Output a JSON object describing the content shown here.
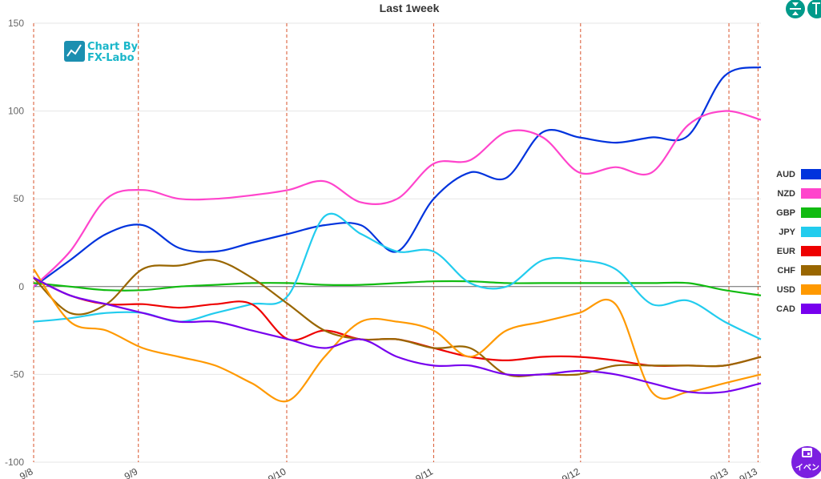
{
  "chart_data": {
    "type": "line",
    "title": "Last 1week",
    "ylim": [
      -100,
      150
    ],
    "yticks": [
      150,
      100,
      50,
      0,
      -50,
      -100
    ],
    "x": [
      0,
      0.25,
      0.5,
      0.75,
      1,
      1.25,
      1.5,
      1.75,
      2,
      2.25,
      2.5,
      2.75,
      3,
      3.25,
      3.5,
      3.75,
      4,
      4.25,
      4.5,
      4.75,
      5
    ],
    "day_ticks": [
      {
        "label": "9/8",
        "x": 0
      },
      {
        "label": "9/9",
        "x": 0.72
      },
      {
        "label": "9/10",
        "x": 1.74
      },
      {
        "label": "9/11",
        "x": 2.75
      },
      {
        "label": "9/12",
        "x": 3.76
      },
      {
        "label": "9/13",
        "x": 4.78
      },
      {
        "label": "9/13",
        "x": 4.98
      }
    ],
    "grid": true,
    "legend_position": "right",
    "series": [
      {
        "name": "AUD",
        "color": "#0033dd",
        "values": [
          0,
          15,
          30,
          35,
          22,
          20,
          25,
          30,
          35,
          35,
          20,
          50,
          65,
          62,
          88,
          85,
          82,
          85,
          86,
          120,
          125
        ]
      },
      {
        "name": "NZD",
        "color": "#ff44cc",
        "values": [
          0,
          20,
          50,
          55,
          50,
          50,
          52,
          55,
          60,
          48,
          50,
          70,
          72,
          88,
          85,
          65,
          68,
          65,
          92,
          100,
          95
        ]
      },
      {
        "name": "GBP",
        "color": "#11bb11",
        "values": [
          2,
          0,
          -2,
          -2,
          0,
          1,
          2,
          2,
          1,
          1,
          2,
          3,
          3,
          2,
          2,
          2,
          2,
          2,
          2,
          -2,
          -5
        ]
      },
      {
        "name": "JPY",
        "color": "#22ccee",
        "values": [
          -20,
          -18,
          -15,
          -15,
          -20,
          -15,
          -10,
          -5,
          40,
          30,
          20,
          20,
          2,
          0,
          15,
          15,
          10,
          -10,
          -8,
          -20,
          -30
        ]
      },
      {
        "name": "EUR",
        "color": "#ee0000",
        "values": [
          5,
          -5,
          -10,
          -10,
          -12,
          -10,
          -10,
          -30,
          -25,
          -30,
          -30,
          -35,
          -40,
          -42,
          -40,
          -40,
          -42,
          -45,
          -45,
          -45,
          -40
        ]
      },
      {
        "name": "CHF",
        "color": "#996600",
        "values": [
          5,
          -15,
          -10,
          10,
          12,
          15,
          5,
          -10,
          -25,
          -30,
          -30,
          -35,
          -35,
          -50,
          -50,
          -50,
          -45,
          -45,
          -45,
          -45,
          -40
        ]
      },
      {
        "name": "USD",
        "color": "#ff9900",
        "values": [
          10,
          -20,
          -25,
          -35,
          -40,
          -45,
          -55,
          -65,
          -40,
          -20,
          -20,
          -25,
          -40,
          -25,
          -20,
          -15,
          -10,
          -60,
          -60,
          -55,
          -50
        ]
      },
      {
        "name": "CAD",
        "color": "#7700ee",
        "values": [
          5,
          -5,
          -10,
          -15,
          -20,
          -20,
          -25,
          -30,
          -35,
          -30,
          -40,
          -45,
          -45,
          -50,
          -50,
          -48,
          -50,
          -55,
          -60,
          -60,
          -55
        ]
      }
    ]
  },
  "logo": {
    "line1": "Chart By",
    "line2": "FX-Labo"
  },
  "buttons": {
    "event_label": "イベン"
  },
  "colors": {
    "grid": "#e6e6e6",
    "day_line": "#d9532b",
    "axis": "#666666",
    "accent": "#009a8a",
    "event": "#7b1fe0"
  },
  "icons": [
    "collapse-icon",
    "expand-icon",
    "calendar-icon",
    "chart-logo-icon"
  ]
}
